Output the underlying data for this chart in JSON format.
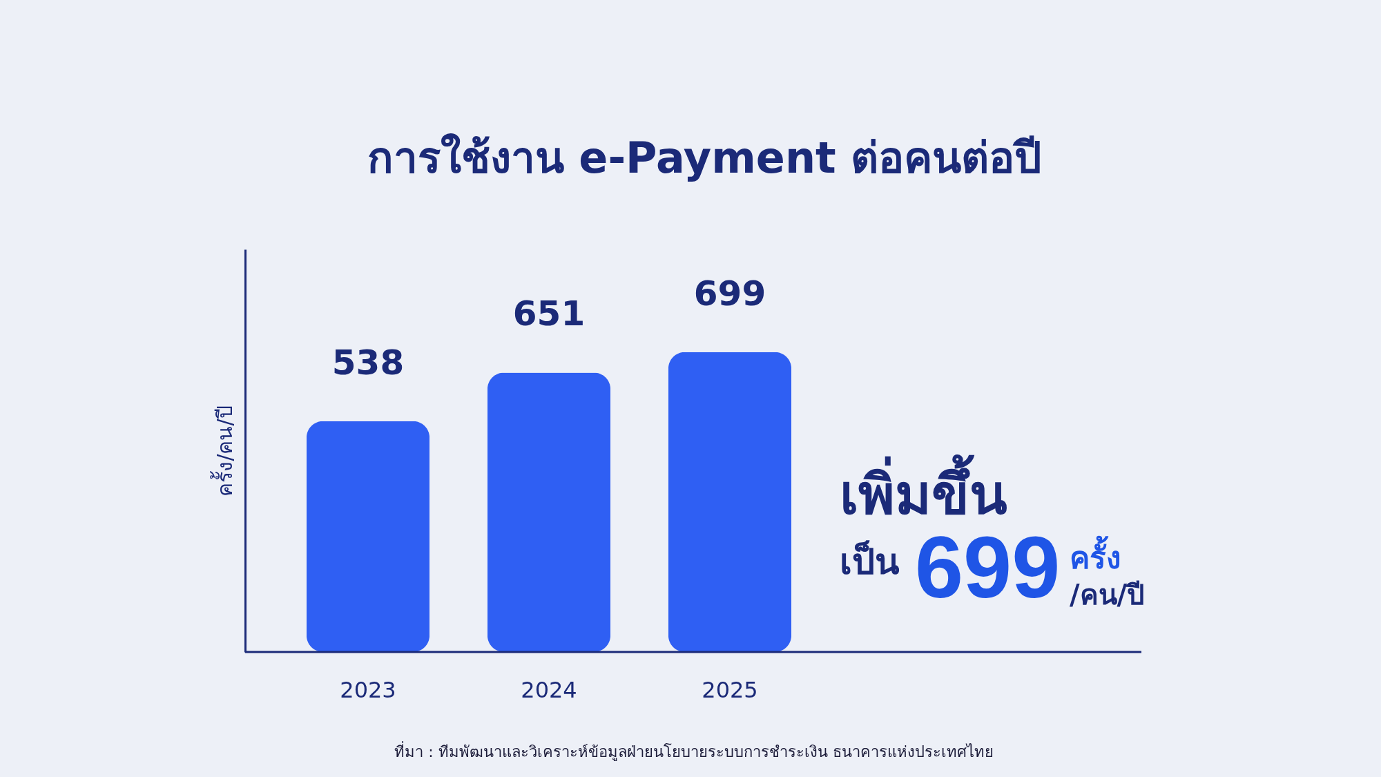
{
  "chart_data": {
    "type": "bar",
    "title": "การใช้งาน e-Payment ต่อคนต่อปี",
    "ylabel": "ครั้ง/คน/ปี",
    "categories": [
      "2023",
      "2024",
      "2025"
    ],
    "values": [
      538,
      651,
      699
    ],
    "color": "#2f5ff3",
    "data_labels": true,
    "tick_labels": "x",
    "annotations": [
      "เพิ่มขึ้น",
      "เป็น",
      "699",
      "ครั้ง",
      "/คน/ปี",
      "ที่มา : ทีมพัฒนาและวิเคราะห์ข้อมูลฝ่ายนโยบายระบบการชำระเงิน ธนาคารแห่งประเทศไทย"
    ]
  }
}
